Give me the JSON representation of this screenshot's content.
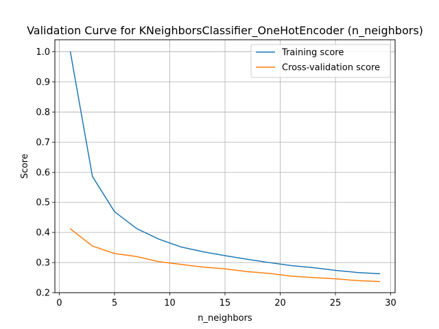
{
  "chart_data": {
    "type": "line",
    "title": "Validation Curve for KNeighborsClassifier_OneHotEncoder (n_neighbors)",
    "xlabel": "n_neighbors",
    "ylabel": "Score",
    "xlim": [
      -0.4,
      30.4
    ],
    "ylim": [
      0.2,
      1.04
    ],
    "xticks": [
      0,
      5,
      10,
      15,
      20,
      25,
      30
    ],
    "yticks": [
      0.2,
      0.3,
      0.4,
      0.5,
      0.6,
      0.7,
      0.8,
      0.9,
      1.0
    ],
    "ytick_labels": [
      "0.2",
      "0.3",
      "0.4",
      "0.5",
      "0.6",
      "0.7",
      "0.8",
      "0.9",
      "1.0"
    ],
    "grid": true,
    "legend_position": "top-right",
    "x": [
      1,
      3,
      5,
      7,
      9,
      11,
      13,
      15,
      17,
      19,
      21,
      23,
      25,
      27,
      29
    ],
    "series": [
      {
        "name": "Training score",
        "color": "#1f77b4",
        "values": [
          1.0,
          0.586,
          0.469,
          0.413,
          0.378,
          0.352,
          0.336,
          0.323,
          0.311,
          0.3,
          0.29,
          0.283,
          0.274,
          0.267,
          0.263
        ]
      },
      {
        "name": "Cross-validation score",
        "color": "#ff7f0e",
        "values": [
          0.412,
          0.355,
          0.33,
          0.32,
          0.303,
          0.294,
          0.285,
          0.279,
          0.27,
          0.264,
          0.255,
          0.25,
          0.246,
          0.24,
          0.237
        ]
      }
    ]
  }
}
